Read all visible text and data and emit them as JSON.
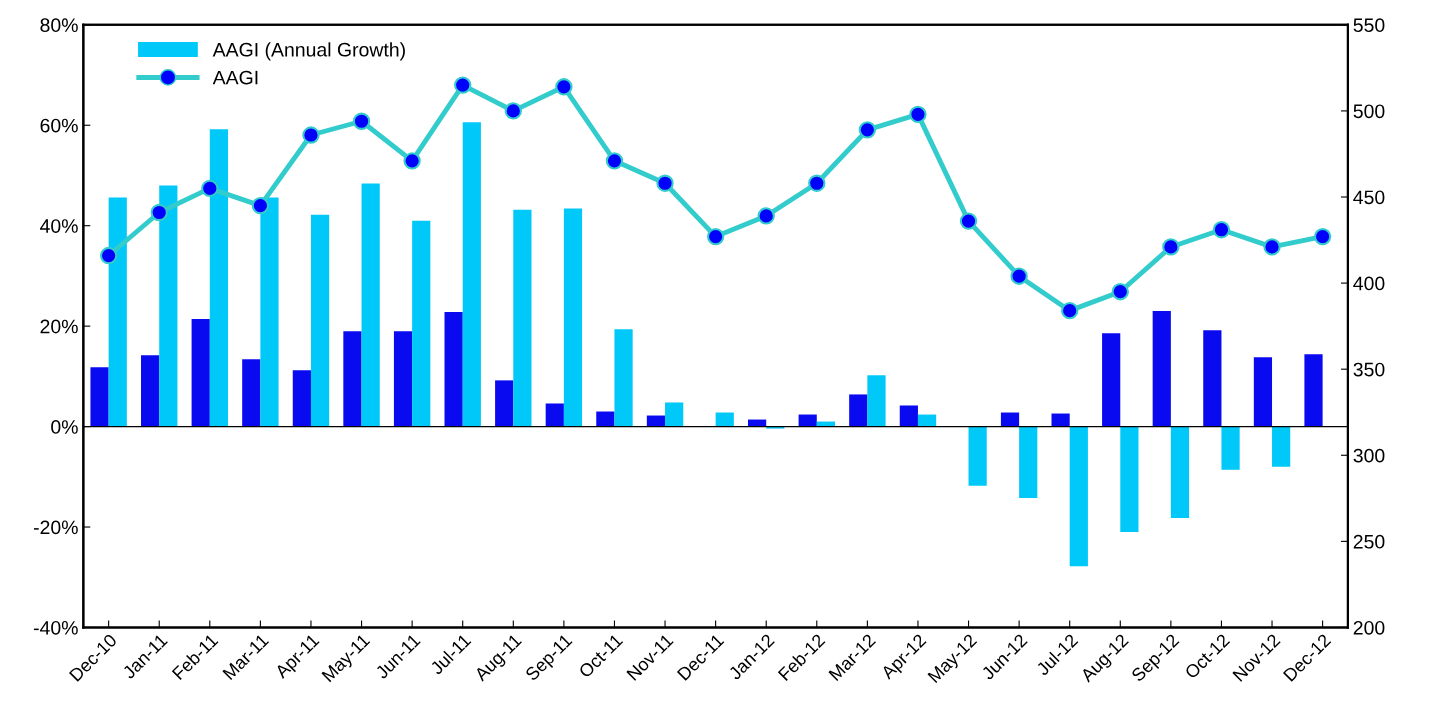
{
  "chart_data": {
    "type": "bar",
    "categories": [
      "Dec-10",
      "Jan-11",
      "Feb-11",
      "Mar-11",
      "Apr-11",
      "May-11",
      "Jun-11",
      "Jul-11",
      "Aug-11",
      "Sep-11",
      "Oct-11",
      "Nov-11",
      "Dec-11",
      "Jan-12",
      "Feb-12",
      "Mar-12",
      "Apr-12",
      "May-12",
      "Jun-12",
      "Jul-12",
      "Aug-12",
      "Sep-12",
      "Oct-12",
      "Nov-12",
      "Dec-12"
    ],
    "series": [
      {
        "color": "#0a0af0",
        "values": [
          11.8,
          14.2,
          21.4,
          13.4,
          11.2,
          19,
          19,
          22.8,
          9.2,
          4.6,
          3,
          2.2,
          0,
          1.4,
          2.4,
          6.4,
          4.2,
          null,
          2.8,
          2.6,
          18.6,
          23,
          19.2,
          13.8,
          14.4
        ]
      },
      {
        "name": "AAGI (Annual Growth)",
        "color": "#00c8f8",
        "values": [
          45.6,
          48,
          59.2,
          45.6,
          42.2,
          48.4,
          41,
          60.6,
          43.2,
          43.4,
          19.4,
          4.8,
          2.8,
          -0.4,
          1,
          10.2,
          2.4,
          -11.8,
          -14.2,
          -27.8,
          -21,
          -18.2,
          -8.6,
          -8,
          null
        ]
      },
      {
        "type": "line",
        "axis": "y2",
        "name": "AAGI",
        "color": "#33cccc",
        "marker": "circle",
        "line_style": "solid",
        "values": [
          416,
          441,
          455,
          445,
          486,
          494,
          471,
          515,
          500,
          514,
          471,
          458,
          427,
          439,
          458,
          489,
          498,
          436,
          404,
          384,
          395,
          421,
          431,
          421,
          427
        ]
      }
    ],
    "ylim": [
      -40,
      80
    ],
    "yticks": [
      {
        "value": -40,
        "label": "-40%"
      },
      {
        "value": -20,
        "label": "-20%"
      },
      {
        "value": 0,
        "label": "0%"
      },
      {
        "value": 20,
        "label": "20%"
      },
      {
        "value": 40,
        "label": "40%"
      },
      {
        "value": 60,
        "label": "60%"
      },
      {
        "value": 80,
        "label": "80%"
      }
    ],
    "y2lim": [
      200,
      550
    ],
    "y2ticks": [
      200,
      250,
      300,
      350,
      400,
      450,
      500,
      550
    ],
    "ref_lines": [
      {
        "axis": "y",
        "value": 0,
        "color": "#000000",
        "line_style": "solid"
      }
    ],
    "legend": "top left"
  }
}
